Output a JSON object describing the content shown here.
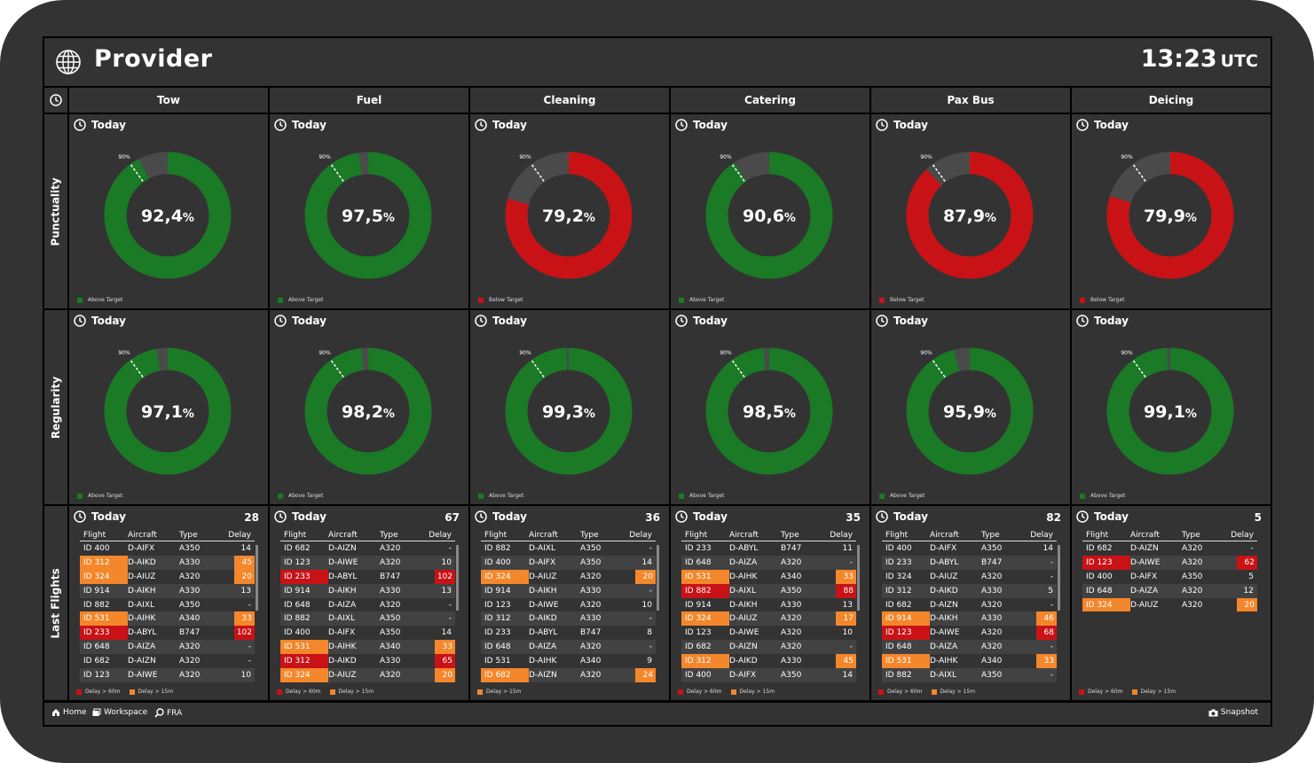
{
  "header": {
    "title": "Provider",
    "time": "13:23",
    "timezone": "UTC"
  },
  "columns": [
    {
      "label": "Tow"
    },
    {
      "label": "Fuel"
    },
    {
      "label": "Cleaning"
    },
    {
      "label": "Catering"
    },
    {
      "label": "Pax Bus"
    },
    {
      "label": "Deicing"
    }
  ],
  "rows": {
    "punctuality": "Punctuality",
    "regularity": "Regularity",
    "last_flights": "Last Flights"
  },
  "today_label": "Today",
  "target_label": "90%",
  "colors": {
    "above": "#1a7a25",
    "below": "#c81216",
    "remainder": "#4a4a4a",
    "delay60": "#c81216",
    "delay15": "#f4872b"
  },
  "punctuality": [
    {
      "value": 92.4,
      "display": "92,4",
      "status": "above",
      "legend": "Above Target"
    },
    {
      "value": 97.5,
      "display": "97,5",
      "status": "above",
      "legend": "Above Target"
    },
    {
      "value": 79.2,
      "display": "79,2",
      "status": "below",
      "legend": "Below Target"
    },
    {
      "value": 90.6,
      "display": "90,6",
      "status": "above",
      "legend": "Above Target"
    },
    {
      "value": 87.9,
      "display": "87,9",
      "status": "below",
      "legend": "Below Target"
    },
    {
      "value": 79.9,
      "display": "79,9",
      "status": "below",
      "legend": "Below Target"
    }
  ],
  "regularity": [
    {
      "value": 97.1,
      "display": "97,1",
      "status": "above",
      "legend": "Above Target"
    },
    {
      "value": 98.2,
      "display": "98,2",
      "status": "above",
      "legend": "Above Target"
    },
    {
      "value": 99.3,
      "display": "99,3",
      "status": "above",
      "legend": "Above Target"
    },
    {
      "value": 98.5,
      "display": "98,5",
      "status": "above",
      "legend": "Above Target"
    },
    {
      "value": 95.9,
      "display": "95,9",
      "status": "above",
      "legend": "Above Target"
    },
    {
      "value": 99.1,
      "display": "99,1",
      "status": "above",
      "legend": "Above Target"
    }
  ],
  "table_headers": [
    "Flight",
    "Aircraft",
    "Type",
    "Delay"
  ],
  "legend_labels": {
    "delay60": "Delay > 60m",
    "delay15": "Delay > 15m"
  },
  "flights": [
    {
      "count": "28",
      "legend": [
        "delay60",
        "delay15"
      ],
      "scroll": true,
      "rows": [
        {
          "flight": "ID 400",
          "aircraft": "D-AIFX",
          "type": "A350",
          "delay": "14"
        },
        {
          "flight": "ID 312",
          "aircraft": "D-AIKD",
          "type": "A330",
          "delay": "45",
          "flag": "delay15"
        },
        {
          "flight": "ID 324",
          "aircraft": "D-AIUZ",
          "type": "A320",
          "delay": "20",
          "flag": "delay15"
        },
        {
          "flight": "ID 914",
          "aircraft": "D-AIKH",
          "type": "A330",
          "delay": "13"
        },
        {
          "flight": "ID 882",
          "aircraft": "D-AIXL",
          "type": "A350",
          "delay": "-"
        },
        {
          "flight": "ID 531",
          "aircraft": "D-AIHK",
          "type": "A340",
          "delay": "33",
          "flag": "delay15"
        },
        {
          "flight": "ID 233",
          "aircraft": "D-ABYL",
          "type": "B747",
          "delay": "102",
          "flag": "delay60"
        },
        {
          "flight": "ID 648",
          "aircraft": "D-AIZA",
          "type": "A320",
          "delay": "-"
        },
        {
          "flight": "ID 682",
          "aircraft": "D-AIZN",
          "type": "A320",
          "delay": "-"
        },
        {
          "flight": "ID 123",
          "aircraft": "D-AIWE",
          "type": "A320",
          "delay": "10"
        }
      ]
    },
    {
      "count": "67",
      "legend": [
        "delay60",
        "delay15"
      ],
      "scroll": true,
      "rows": [
        {
          "flight": "ID 682",
          "aircraft": "D-AIZN",
          "type": "A320",
          "delay": "-"
        },
        {
          "flight": "ID 123",
          "aircraft": "D-AIWE",
          "type": "A320",
          "delay": "10"
        },
        {
          "flight": "ID 233",
          "aircraft": "D-ABYL",
          "type": "B747",
          "delay": "102",
          "flag": "delay60"
        },
        {
          "flight": "ID 914",
          "aircraft": "D-AIKH",
          "type": "A330",
          "delay": "13"
        },
        {
          "flight": "ID 648",
          "aircraft": "D-AIZA",
          "type": "A320",
          "delay": "-"
        },
        {
          "flight": "ID 882",
          "aircraft": "D-AIXL",
          "type": "A350",
          "delay": "-"
        },
        {
          "flight": "ID 400",
          "aircraft": "D-AIFX",
          "type": "A350",
          "delay": "14"
        },
        {
          "flight": "ID 531",
          "aircraft": "D-AIHK",
          "type": "A340",
          "delay": "33",
          "flag": "delay15"
        },
        {
          "flight": "ID 312",
          "aircraft": "D-AIKD",
          "type": "A330",
          "delay": "65",
          "flag": "delay60"
        },
        {
          "flight": "ID 324",
          "aircraft": "D-AIUZ",
          "type": "A320",
          "delay": "20",
          "flag": "delay15"
        }
      ]
    },
    {
      "count": "36",
      "legend": [
        "delay15"
      ],
      "scroll": true,
      "rows": [
        {
          "flight": "ID 882",
          "aircraft": "D-AIXL",
          "type": "A350",
          "delay": "-"
        },
        {
          "flight": "ID 400",
          "aircraft": "D-AIFX",
          "type": "A350",
          "delay": "14"
        },
        {
          "flight": "ID 324",
          "aircraft": "D-AIUZ",
          "type": "A320",
          "delay": "20",
          "flag": "delay15"
        },
        {
          "flight": "ID 914",
          "aircraft": "D-AIKH",
          "type": "A330",
          "delay": "-"
        },
        {
          "flight": "ID 123",
          "aircraft": "D-AIWE",
          "type": "A320",
          "delay": "10"
        },
        {
          "flight": "ID 312",
          "aircraft": "D-AIKD",
          "type": "A330",
          "delay": "-"
        },
        {
          "flight": "ID 233",
          "aircraft": "D-ABYL",
          "type": "B747",
          "delay": "8"
        },
        {
          "flight": "ID 648",
          "aircraft": "D-AIZA",
          "type": "A320",
          "delay": "-"
        },
        {
          "flight": "ID 531",
          "aircraft": "D-AIHK",
          "type": "A340",
          "delay": "9"
        },
        {
          "flight": "ID 682",
          "aircraft": "D-AIZN",
          "type": "A320",
          "delay": "24",
          "flag": "delay15"
        }
      ]
    },
    {
      "count": "35",
      "legend": [
        "delay60",
        "delay15"
      ],
      "scroll": true,
      "rows": [
        {
          "flight": "ID 233",
          "aircraft": "D-ABYL",
          "type": "B747",
          "delay": "11"
        },
        {
          "flight": "ID 648",
          "aircraft": "D-AIZA",
          "type": "A320",
          "delay": "-"
        },
        {
          "flight": "ID 531",
          "aircraft": "D-AIHK",
          "type": "A340",
          "delay": "33",
          "flag": "delay15"
        },
        {
          "flight": "ID 882",
          "aircraft": "D-AIXL",
          "type": "A350",
          "delay": "88",
          "flag": "delay60"
        },
        {
          "flight": "ID 914",
          "aircraft": "D-AIKH",
          "type": "A330",
          "delay": "13"
        },
        {
          "flight": "ID 324",
          "aircraft": "D-AIUZ",
          "type": "A320",
          "delay": "17",
          "flag": "delay15"
        },
        {
          "flight": "ID 123",
          "aircraft": "D-AIWE",
          "type": "A320",
          "delay": "10"
        },
        {
          "flight": "ID 682",
          "aircraft": "D-AIZN",
          "type": "A320",
          "delay": "-"
        },
        {
          "flight": "ID 312",
          "aircraft": "D-AIKD",
          "type": "A330",
          "delay": "45",
          "flag": "delay15"
        },
        {
          "flight": "ID 400",
          "aircraft": "D-AIFX",
          "type": "A350",
          "delay": "14"
        }
      ]
    },
    {
      "count": "82",
      "legend": [
        "delay60",
        "delay15"
      ],
      "scroll": true,
      "rows": [
        {
          "flight": "ID 400",
          "aircraft": "D-AIFX",
          "type": "A350",
          "delay": "14"
        },
        {
          "flight": "ID 233",
          "aircraft": "D-ABYL",
          "type": "B747",
          "delay": "-"
        },
        {
          "flight": "ID 324",
          "aircraft": "D-AIUZ",
          "type": "A320",
          "delay": "-"
        },
        {
          "flight": "ID 312",
          "aircraft": "D-AIKD",
          "type": "A330",
          "delay": "5"
        },
        {
          "flight": "ID 682",
          "aircraft": "D-AIZN",
          "type": "A320",
          "delay": "-"
        },
        {
          "flight": "ID 914",
          "aircraft": "D-AIKH",
          "type": "A330",
          "delay": "46",
          "flag": "delay15"
        },
        {
          "flight": "ID 123",
          "aircraft": "D-AIWE",
          "type": "A320",
          "delay": "68",
          "flag": "delay60"
        },
        {
          "flight": "ID 648",
          "aircraft": "D-AIZA",
          "type": "A320",
          "delay": "-"
        },
        {
          "flight": "ID 531",
          "aircraft": "D-AIHK",
          "type": "A340",
          "delay": "33",
          "flag": "delay15"
        },
        {
          "flight": "ID 882",
          "aircraft": "D-AIXL",
          "type": "A350",
          "delay": "-"
        }
      ]
    },
    {
      "count": "5",
      "legend": [
        "delay60",
        "delay15"
      ],
      "scroll": false,
      "rows": [
        {
          "flight": "ID 682",
          "aircraft": "D-AIZN",
          "type": "A320",
          "delay": "-"
        },
        {
          "flight": "ID 123",
          "aircraft": "D-AIWE",
          "type": "A320",
          "delay": "62",
          "flag": "delay60"
        },
        {
          "flight": "ID 400",
          "aircraft": "D-AIFX",
          "type": "A350",
          "delay": "5"
        },
        {
          "flight": "ID 648",
          "aircraft": "D-AIZA",
          "type": "A320",
          "delay": "12"
        },
        {
          "flight": "ID 324",
          "aircraft": "D-AIUZ",
          "type": "A320",
          "delay": "20",
          "flag": "delay15"
        }
      ]
    }
  ],
  "footer": {
    "home": "Home",
    "workspace": "Workspace",
    "location": "FRA",
    "snapshot": "Snapshot"
  }
}
